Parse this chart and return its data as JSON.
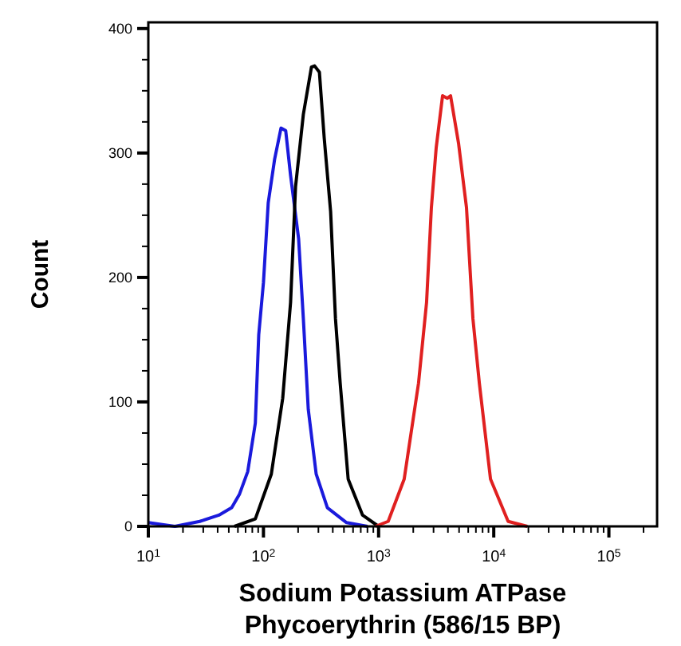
{
  "chart_data": {
    "type": "line",
    "xlabel": "Sodium Potassium ATPase\nPhycoerythrin (586/15 BP)",
    "ylabel": "Count",
    "log": "x",
    "grid": false,
    "marker": "none",
    "line_style": "solid",
    "xlim": [
      10,
      262144
    ],
    "ylim": [
      0,
      405
    ],
    "xticks": [
      {
        "value": 10,
        "label": "10$^{1}$"
      },
      {
        "value": 20,
        "label": null
      },
      {
        "value": 30,
        "label": null
      },
      {
        "value": 40,
        "label": null
      },
      {
        "value": 50,
        "label": null
      },
      {
        "value": 60,
        "label": null
      },
      {
        "value": 70,
        "label": null
      },
      {
        "value": 80,
        "label": null
      },
      {
        "value": 90,
        "label": null
      },
      {
        "value": 100,
        "label": "10$^{2}$"
      },
      {
        "value": 200,
        "label": null
      },
      {
        "value": 300,
        "label": null
      },
      {
        "value": 400,
        "label": null
      },
      {
        "value": 500,
        "label": null
      },
      {
        "value": 600,
        "label": null
      },
      {
        "value": 700,
        "label": null
      },
      {
        "value": 800,
        "label": null
      },
      {
        "value": 900,
        "label": null
      },
      {
        "value": 1000,
        "label": "10$^{3}$"
      },
      {
        "value": 2000,
        "label": null
      },
      {
        "value": 3000,
        "label": null
      },
      {
        "value": 4000,
        "label": null
      },
      {
        "value": 5000,
        "label": null
      },
      {
        "value": 6000,
        "label": null
      },
      {
        "value": 7000,
        "label": null
      },
      {
        "value": 8000,
        "label": null
      },
      {
        "value": 9000,
        "label": null
      },
      {
        "value": 10000,
        "label": "10$^{4}$"
      },
      {
        "value": 20000,
        "label": null
      },
      {
        "value": 30000,
        "label": null
      },
      {
        "value": 40000,
        "label": null
      },
      {
        "value": 50000,
        "label": null
      },
      {
        "value": 60000,
        "label": null
      },
      {
        "value": 70000,
        "label": null
      },
      {
        "value": 80000,
        "label": null
      },
      {
        "value": 90000,
        "label": null
      },
      {
        "value": 100000,
        "label": "10$^{5}$"
      },
      {
        "value": 200000,
        "label": null
      }
    ],
    "yticks": [
      0,
      {
        "value": 25,
        "label": null
      },
      {
        "value": 50,
        "label": null
      },
      {
        "value": 75,
        "label": null
      },
      100,
      {
        "value": 125,
        "label": null
      },
      {
        "value": 150,
        "label": null
      },
      {
        "value": 175,
        "label": null
      },
      200,
      {
        "value": 225,
        "label": null
      },
      {
        "value": 250,
        "label": null
      },
      {
        "value": 275,
        "label": null
      },
      300,
      {
        "value": 325,
        "label": null
      },
      {
        "value": 350,
        "label": null
      },
      {
        "value": 375,
        "label": null
      },
      400
    ],
    "series": [
      {
        "color": "#1a1adc",
        "x": [
          10,
          17,
          28,
          41,
          53,
          62,
          73,
          85,
          91,
          100,
          110,
          125,
          142,
          156,
          172,
          202,
          222,
          245,
          287,
          359,
          527,
          800
        ],
        "values": [
          3,
          0,
          4,
          9,
          15,
          26,
          44,
          83,
          154,
          196,
          260,
          295,
          320,
          318,
          282,
          231,
          167,
          94,
          42,
          15,
          3,
          0
        ]
      },
      {
        "color": "#000000",
        "x": [
          56,
          85,
          117,
          147,
          172,
          190,
          222,
          261,
          278,
          306,
          337,
          383,
          422,
          464,
          544,
          726,
          1000
        ],
        "values": [
          0,
          6,
          42,
          103,
          180,
          273,
          331,
          369,
          370,
          365,
          312,
          253,
          167,
          115,
          38,
          9,
          0
        ]
      },
      {
        "color": "#e02020",
        "x": [
          938,
          1211,
          1668,
          2222,
          2610,
          2873,
          3162,
          3594,
          3954,
          4217,
          4943,
          5801,
          6592,
          7499,
          9376,
          13335,
          19580
        ],
        "values": [
          0,
          4,
          38,
          115,
          180,
          256,
          304,
          346,
          344,
          346,
          308,
          256,
          167,
          115,
          38,
          4,
          0
        ]
      }
    ]
  }
}
